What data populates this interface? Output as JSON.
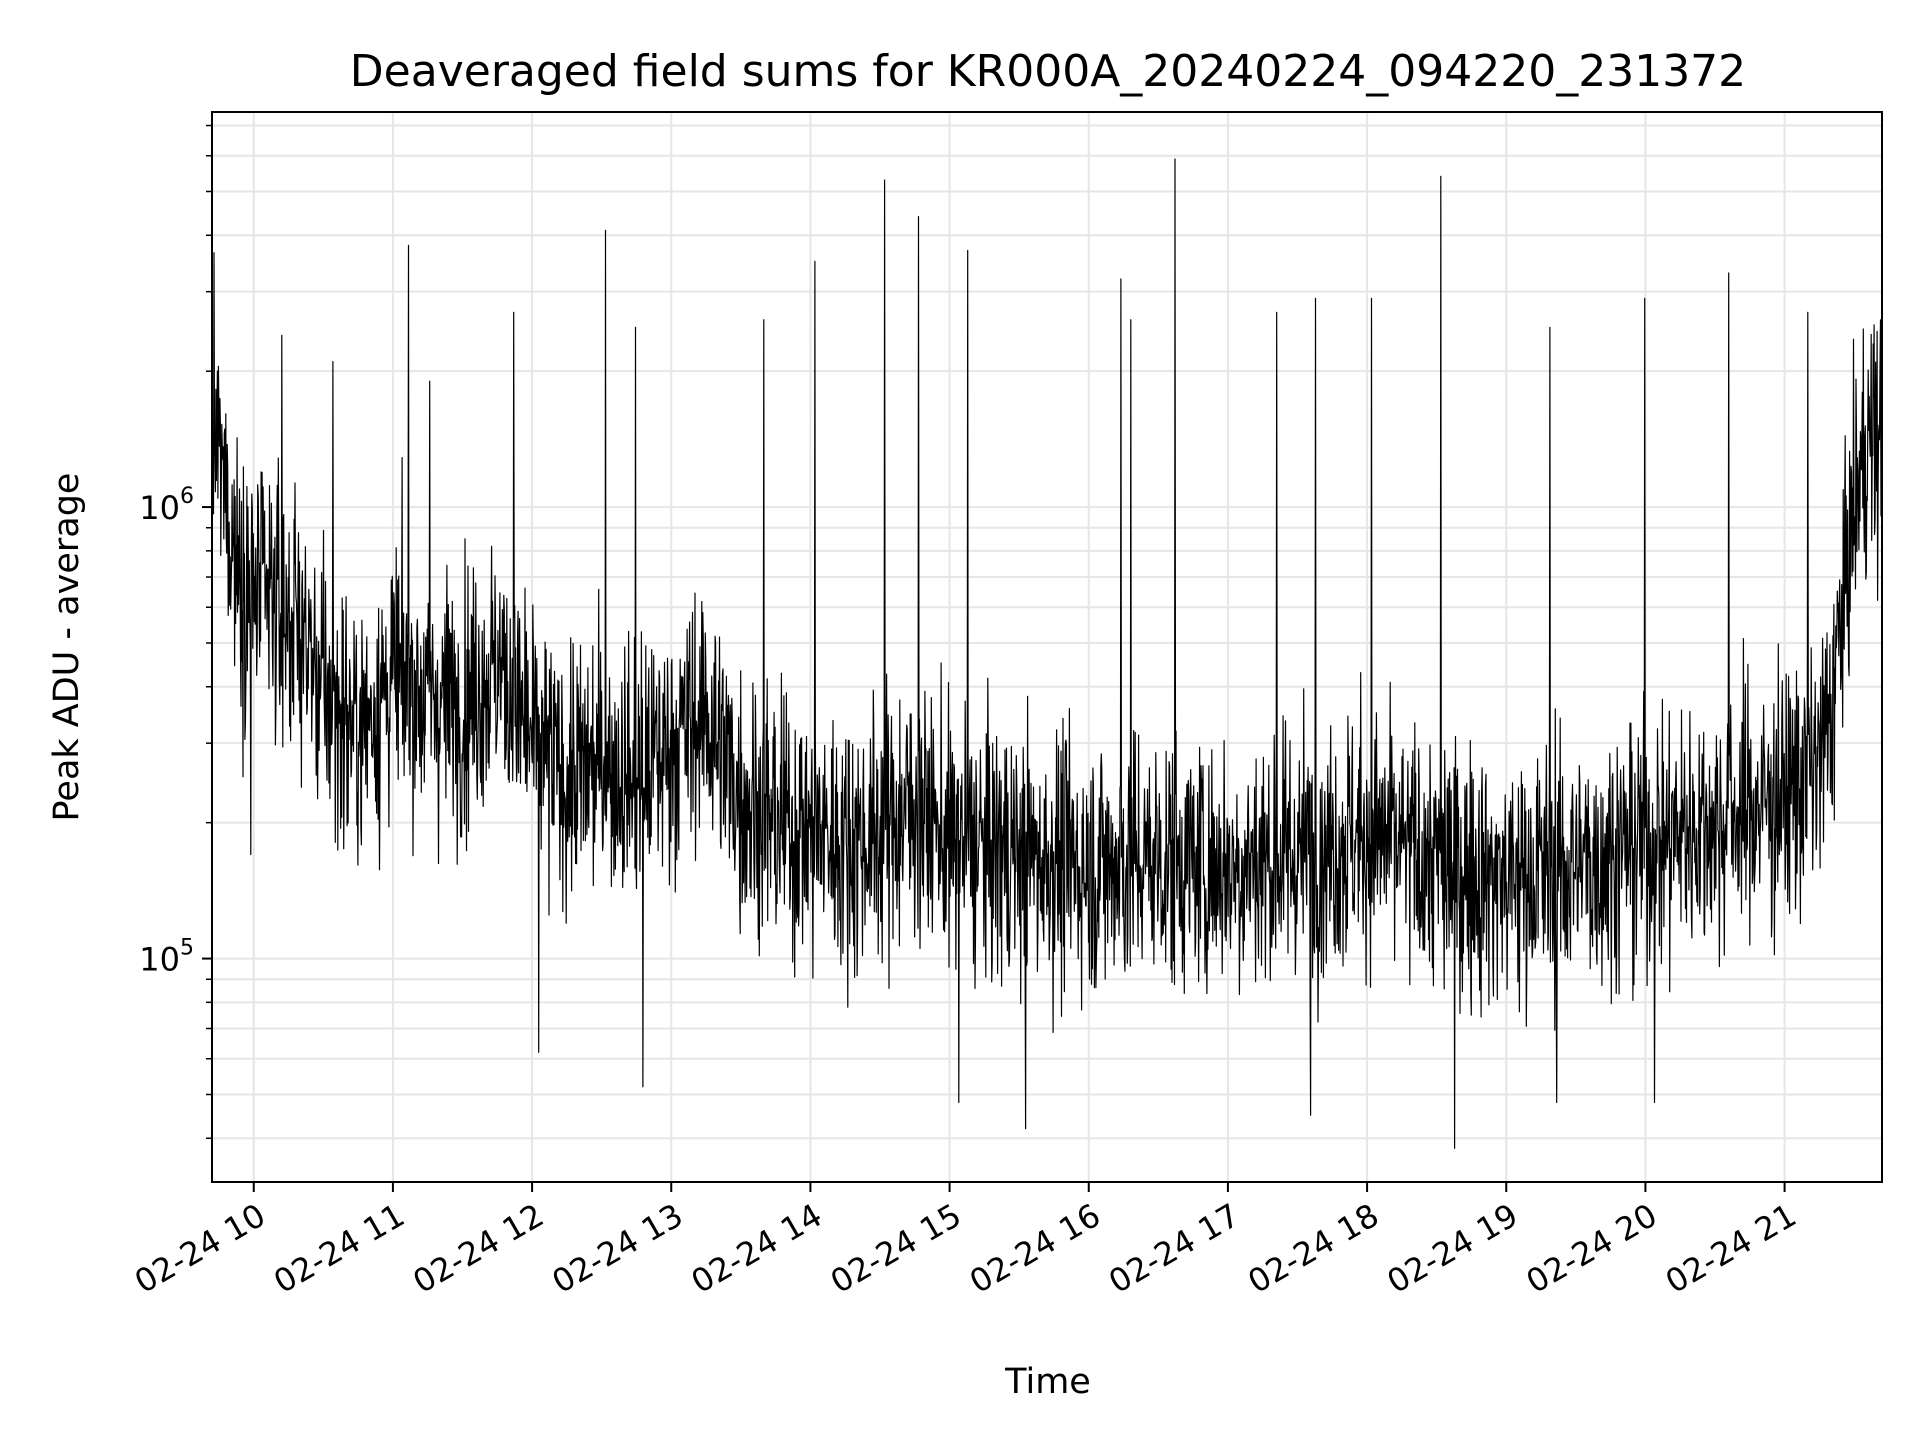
{
  "chart_data": {
    "type": "line",
    "title": "Deaveraged field sums for KR000A_20240224_094220_231372",
    "xlabel": "Time",
    "ylabel": "Peak ADU - average",
    "yscale": "log",
    "ylim": [
      32000,
      7500000
    ],
    "xlim": [
      "2024-02-24 09:42",
      "2024-02-24 21:42"
    ],
    "grid": true,
    "series_color": "#000000",
    "x_ticks": [
      "02-24 10",
      "02-24 11",
      "02-24 12",
      "02-24 13",
      "02-24 14",
      "02-24 15",
      "02-24 16",
      "02-24 17",
      "02-24 18",
      "02-24 19",
      "02-24 20",
      "02-24 21"
    ],
    "y_ticks": [
      {
        "value": 100000,
        "base": "10",
        "exp": "5"
      },
      {
        "value": 1000000,
        "base": "10",
        "exp": "6"
      }
    ],
    "series": [
      {
        "x": [
          "2024-02-24 09:42",
          "2024-02-24 09:45",
          "2024-02-24 09:50",
          "2024-02-24 09:55",
          "2024-02-24 10:00",
          "2024-02-24 10:10",
          "2024-02-24 10:20",
          "2024-02-24 10:30",
          "2024-02-24 10:45",
          "2024-02-24 11:00",
          "2024-02-24 11:15",
          "2024-02-24 11:30",
          "2024-02-24 11:45",
          "2024-02-24 12:00",
          "2024-02-24 12:15",
          "2024-02-24 12:30",
          "2024-02-24 12:45",
          "2024-02-24 13:00",
          "2024-02-24 13:15",
          "2024-02-24 13:30",
          "2024-02-24 13:45",
          "2024-02-24 14:00",
          "2024-02-24 14:15",
          "2024-02-24 14:30",
          "2024-02-24 14:45",
          "2024-02-24 15:00",
          "2024-02-24 15:30",
          "2024-02-24 16:00",
          "2024-02-24 16:30",
          "2024-02-24 17:00",
          "2024-02-24 17:30",
          "2024-02-24 18:00",
          "2024-02-24 18:30",
          "2024-02-24 19:00",
          "2024-02-24 19:30",
          "2024-02-24 20:00",
          "2024-02-24 20:30",
          "2024-02-24 21:00",
          "2024-02-24 21:15",
          "2024-02-24 21:20",
          "2024-02-24 21:25",
          "2024-02-24 21:30",
          "2024-02-24 21:35",
          "2024-02-24 21:42"
        ],
        "y": [
          1500000,
          1300000,
          900000,
          700000,
          650000,
          600000,
          550000,
          380000,
          320000,
          420000,
          380000,
          370000,
          450000,
          300000,
          250000,
          270000,
          250000,
          300000,
          350000,
          230000,
          200000,
          190000,
          180000,
          190000,
          220000,
          180000,
          170000,
          160000,
          165000,
          160000,
          170000,
          190000,
          160000,
          150000,
          160000,
          180000,
          200000,
          230000,
          270000,
          350000,
          600000,
          1000000,
          1400000,
          1400000
        ]
      }
    ],
    "spikes": [
      {
        "x": "2024-02-24 10:12",
        "y": 2400000
      },
      {
        "x": "2024-02-24 10:34",
        "y": 2100000
      },
      {
        "x": "2024-02-24 11:07",
        "y": 3800000
      },
      {
        "x": "2024-02-24 11:16",
        "y": 1900000
      },
      {
        "x": "2024-02-24 11:52",
        "y": 2700000
      },
      {
        "x": "2024-02-24 12:32",
        "y": 4100000
      },
      {
        "x": "2024-02-24 12:45",
        "y": 2500000
      },
      {
        "x": "2024-02-24 13:40",
        "y": 2600000
      },
      {
        "x": "2024-02-24 14:02",
        "y": 3500000
      },
      {
        "x": "2024-02-24 14:32",
        "y": 5300000
      },
      {
        "x": "2024-02-24 14:47",
        "y": 4400000
      },
      {
        "x": "2024-02-24 15:08",
        "y": 3700000
      },
      {
        "x": "2024-02-24 16:14",
        "y": 3200000
      },
      {
        "x": "2024-02-24 16:18",
        "y": 2600000
      },
      {
        "x": "2024-02-24 16:37",
        "y": 5900000
      },
      {
        "x": "2024-02-24 17:21",
        "y": 2700000
      },
      {
        "x": "2024-02-24 17:38",
        "y": 2900000
      },
      {
        "x": "2024-02-24 18:02",
        "y": 2900000
      },
      {
        "x": "2024-02-24 18:32",
        "y": 5400000
      },
      {
        "x": "2024-02-24 19:19",
        "y": 2500000
      },
      {
        "x": "2024-02-24 20:00",
        "y": 2900000
      },
      {
        "x": "2024-02-24 20:36",
        "y": 3300000
      },
      {
        "x": "2024-02-24 21:10",
        "y": 2700000
      }
    ],
    "dips": [
      {
        "x": "2024-02-24 09:59",
        "y": 170000
      },
      {
        "x": "2024-02-24 12:03",
        "y": 62000
      },
      {
        "x": "2024-02-24 12:48",
        "y": 52000
      },
      {
        "x": "2024-02-24 15:04",
        "y": 48000
      },
      {
        "x": "2024-02-24 15:33",
        "y": 42000
      },
      {
        "x": "2024-02-24 17:36",
        "y": 45000
      },
      {
        "x": "2024-02-24 18:38",
        "y": 38000
      },
      {
        "x": "2024-02-24 19:22",
        "y": 48000
      },
      {
        "x": "2024-02-24 20:04",
        "y": 48000
      }
    ]
  }
}
